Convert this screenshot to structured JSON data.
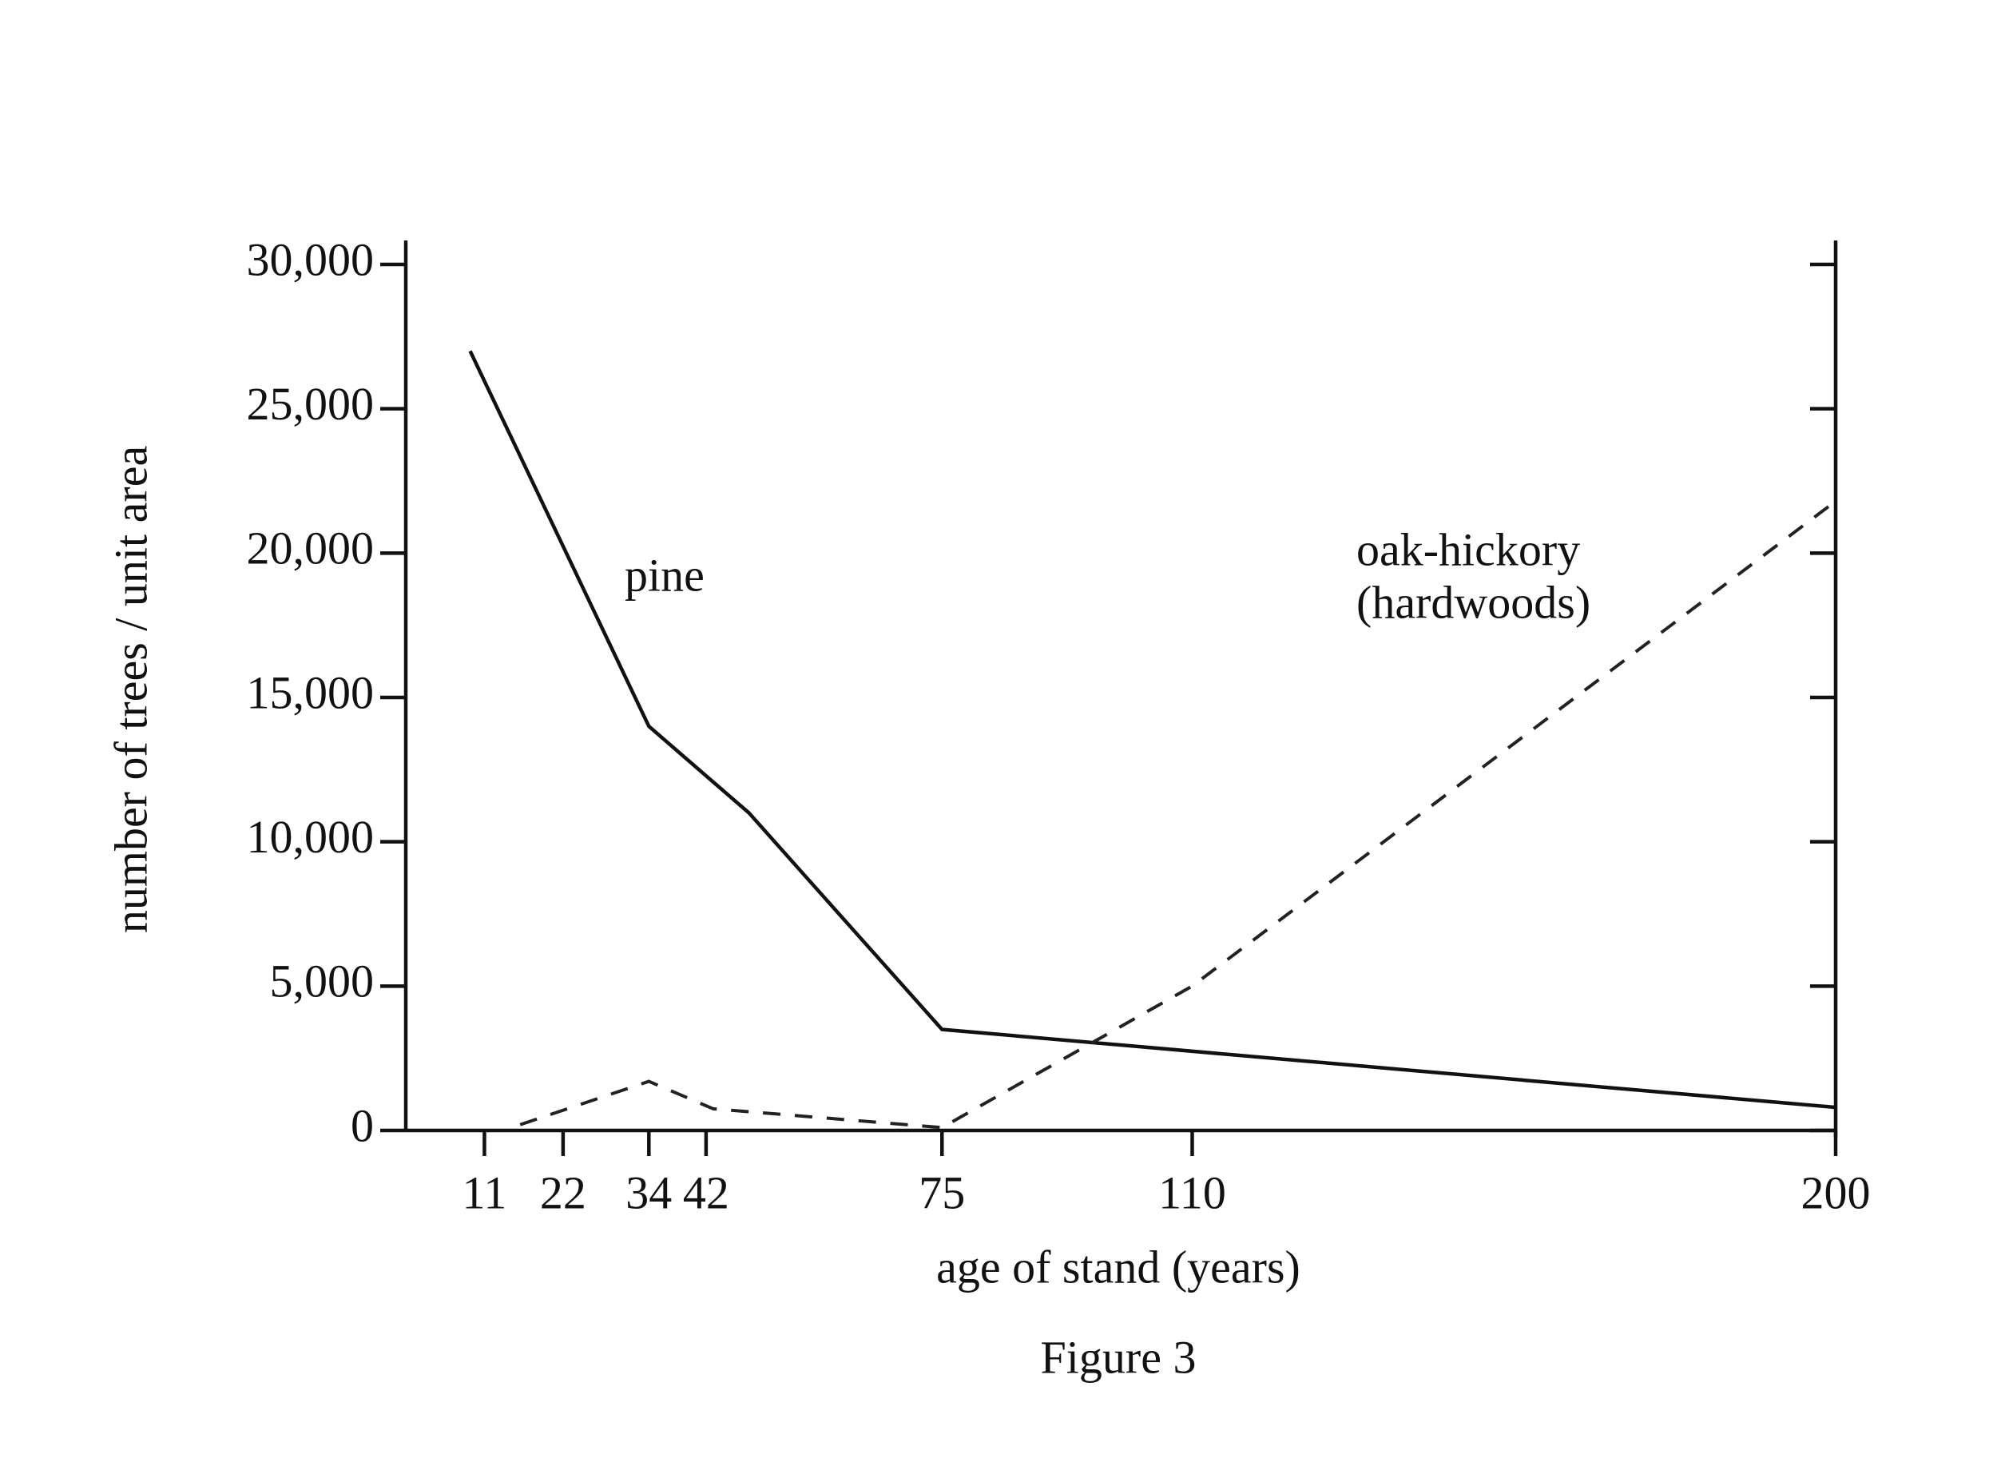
{
  "chart_data": {
    "type": "line",
    "x_label": "age of stand (years)",
    "y_label": "number of trees / unit area",
    "caption": "Figure 3",
    "xlim": [
      0,
      200
    ],
    "xticks": [
      11,
      22,
      34,
      42,
      75,
      110,
      200
    ],
    "ylim": [
      0,
      30000
    ],
    "yticks": [
      0,
      {
        "value": 5000,
        "label": "5,000"
      },
      {
        "value": 10000,
        "label": "10,000"
      },
      {
        "value": 15000,
        "label": "15,000"
      },
      {
        "value": 20000,
        "label": "20,000"
      },
      {
        "value": 25000,
        "label": "25,000"
      },
      {
        "value": 30000,
        "label": "30,000"
      }
    ],
    "right_axis_ticks": true,
    "grid": false,
    "series": [
      {
        "name": "pine",
        "color": "#111111",
        "dash": false,
        "x": [
          9,
          34,
          48,
          75,
          200
        ],
        "values": [
          27000,
          14000,
          11000,
          3500,
          800
        ]
      },
      {
        "name": "oak-hickory",
        "note": "(hardwoods)",
        "color": "#222222",
        "dash": true,
        "x": [
          16,
          34,
          43,
          75,
          110,
          200
        ],
        "values": [
          200,
          1700,
          750,
          100,
          5000,
          21800
        ]
      }
    ]
  }
}
